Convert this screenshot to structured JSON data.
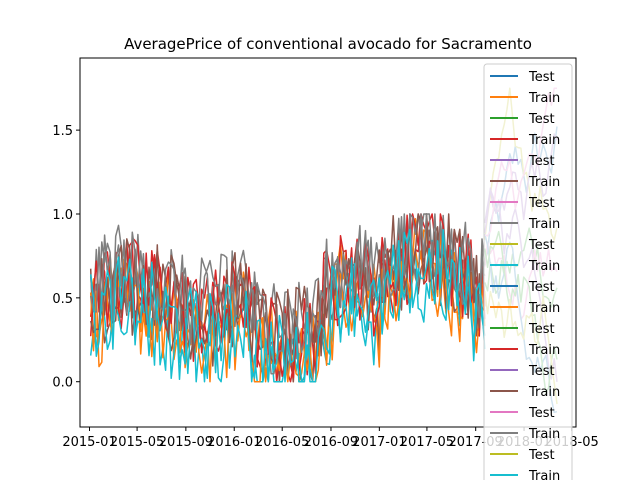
{
  "chart_data": {
    "type": "line",
    "title": "AveragePrice of conventional avocado for Sacramento",
    "xlabel": "",
    "ylabel": "",
    "x_range": [
      "2014-12-08",
      "2018-05-12"
    ],
    "ylim": [
      -0.27,
      1.93
    ],
    "x_ticks": [
      "2015-01",
      "2015-05",
      "2015-09",
      "2016-01",
      "2016-05",
      "2016-09",
      "2017-01",
      "2017-05",
      "2017-09",
      "2018-01",
      "2018-05"
    ],
    "y_ticks": [
      "0.0",
      "0.5",
      "1.0",
      "1.5"
    ],
    "grid": false,
    "legend_placement": "right",
    "train_range": [
      "2015-01-04",
      "2017-09-24"
    ],
    "test_range": [
      "2017-09-24",
      "2018-03-25"
    ],
    "series_colors": [
      "#1f77b4",
      "#ff7f0e",
      "#2ca02c",
      "#d62728",
      "#9467bd",
      "#8c564b",
      "#e377c2",
      "#7f7f7f",
      "#bcbd22",
      "#17becf"
    ],
    "series": [
      {
        "name": "Test",
        "role": "test"
      },
      {
        "name": "Train",
        "role": "train"
      },
      {
        "name": "Test",
        "role": "test"
      },
      {
        "name": "Train",
        "role": "train"
      },
      {
        "name": "Test",
        "role": "test"
      },
      {
        "name": "Train",
        "role": "train"
      },
      {
        "name": "Test",
        "role": "test"
      },
      {
        "name": "Train",
        "role": "train"
      },
      {
        "name": "Test",
        "role": "test"
      },
      {
        "name": "Train",
        "role": "train"
      },
      {
        "name": "Test",
        "role": "test"
      },
      {
        "name": "Train",
        "role": "train"
      },
      {
        "name": "Test",
        "role": "test"
      },
      {
        "name": "Train",
        "role": "train"
      },
      {
        "name": "Test",
        "role": "test"
      },
      {
        "name": "Train",
        "role": "train"
      },
      {
        "name": "Test",
        "role": "test"
      },
      {
        "name": "Train",
        "role": "train"
      },
      {
        "name": "Test",
        "role": "test"
      },
      {
        "name": "Train",
        "role": "train"
      }
    ]
  }
}
